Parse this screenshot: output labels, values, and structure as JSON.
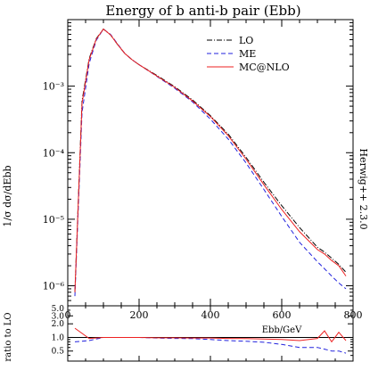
{
  "chart_data": [
    {
      "type": "line",
      "title": "Energy of b anti-b pair (Ebb)",
      "ylabel": "1/σ dσ/dEbb",
      "side_label": "Herwig++ 2.3.0",
      "xlim": [
        0,
        800
      ],
      "ylim": [
        5e-07,
        0.01
      ],
      "yscale": "log",
      "ytick_labels": [
        {
          "v": 1e-06,
          "label": "10⁻⁶"
        },
        {
          "v": 1e-05,
          "label": "10⁻⁵"
        },
        {
          "v": 0.0001,
          "label": "10⁻⁴"
        },
        {
          "v": 0.001,
          "label": "10⁻³"
        }
      ],
      "legend_position": "top-right",
      "series": [
        {
          "name": "LO",
          "color": "#000000",
          "dash": "6 2 1 2",
          "x": [
            20,
            40,
            60,
            80,
            100,
            120,
            140,
            160,
            180,
            200,
            250,
            300,
            350,
            400,
            450,
            500,
            550,
            600,
            650,
            700,
            720,
            740,
            760,
            780
          ],
          "y": [
            8e-07,
            0.0006,
            0.0026,
            0.0052,
            0.0072,
            0.0059,
            0.0042,
            0.0031,
            0.0025,
            0.0021,
            0.00145,
            0.00098,
            0.00062,
            0.00036,
            0.00019,
            8.5e-05,
            3.6e-05,
            1.6e-05,
            7.5e-06,
            3.8e-06,
            3.2e-06,
            2.6e-06,
            2.1e-06,
            1.6e-06
          ]
        },
        {
          "name": "ME",
          "color": "#2222dd",
          "dash": "5 3",
          "x": [
            20,
            40,
            60,
            80,
            100,
            120,
            140,
            160,
            180,
            200,
            250,
            300,
            350,
            400,
            450,
            500,
            550,
            600,
            650,
            700,
            720,
            740,
            760,
            780
          ],
          "y": [
            7e-07,
            0.0004,
            0.0022,
            0.0049,
            0.0072,
            0.006,
            0.0043,
            0.0031,
            0.0025,
            0.0021,
            0.0014,
            0.00093,
            0.00058,
            0.00032,
            0.00016,
            7e-05,
            2.8e-05,
            1.1e-05,
            4.5e-06,
            2.3e-06,
            1.8e-06,
            1.4e-06,
            1.1e-06,
            9e-07
          ]
        },
        {
          "name": "MC@NLO",
          "color": "#ee2222",
          "dash": "",
          "x": [
            20,
            40,
            60,
            80,
            100,
            120,
            140,
            160,
            180,
            200,
            250,
            300,
            350,
            400,
            450,
            500,
            550,
            600,
            650,
            700,
            720,
            740,
            760,
            780
          ],
          "y": [
            8e-07,
            0.00055,
            0.0025,
            0.0051,
            0.0072,
            0.0059,
            0.0042,
            0.0031,
            0.0025,
            0.0021,
            0.00142,
            0.00096,
            0.0006,
            0.00035,
            0.00018,
            8e-05,
            3.3e-05,
            1.4e-05,
            6.5e-06,
            3.5e-06,
            3e-06,
            2.4e-06,
            2e-06,
            1.4e-06
          ]
        }
      ]
    },
    {
      "type": "line",
      "xlabel": "Ebb/GeV",
      "ylabel": "ratio to LO",
      "xlim": [
        0,
        800
      ],
      "ylim": [
        0.3,
        5.0
      ],
      "yscale": "log",
      "xtick_labels": [
        "0",
        "200",
        "400",
        "600",
        "800"
      ],
      "ytick_labels": [
        {
          "v": 5.0,
          "label": "5.0"
        },
        {
          "v": 3.0,
          "label": "3.0"
        },
        {
          "v": 2.0,
          "label": "2.0"
        },
        {
          "v": 1.0,
          "label": "1.0"
        },
        {
          "v": 0.5,
          "label": "0.5"
        }
      ],
      "series": [
        {
          "name": "ME",
          "color": "#2222dd",
          "dash": "5 3",
          "x": [
            20,
            60,
            100,
            150,
            200,
            250,
            300,
            350,
            400,
            450,
            500,
            550,
            600,
            650,
            700,
            720,
            740,
            760,
            780
          ],
          "y": [
            0.8,
            0.85,
            1.0,
            1.0,
            1.0,
            0.97,
            0.95,
            0.94,
            0.9,
            0.85,
            0.82,
            0.78,
            0.7,
            0.6,
            0.6,
            0.55,
            0.5,
            0.5,
            0.45
          ]
        },
        {
          "name": "MC@NLO",
          "color": "#ee2222",
          "dash": "",
          "x": [
            20,
            60,
            100,
            150,
            200,
            250,
            300,
            350,
            400,
            450,
            500,
            550,
            600,
            650,
            700,
            720,
            740,
            760,
            780
          ],
          "y": [
            1.6,
            0.95,
            1.0,
            1.0,
            1.0,
            0.98,
            0.98,
            0.97,
            0.97,
            0.95,
            0.94,
            0.92,
            0.9,
            0.85,
            0.95,
            1.4,
            0.8,
            1.3,
            0.85
          ]
        }
      ]
    }
  ]
}
